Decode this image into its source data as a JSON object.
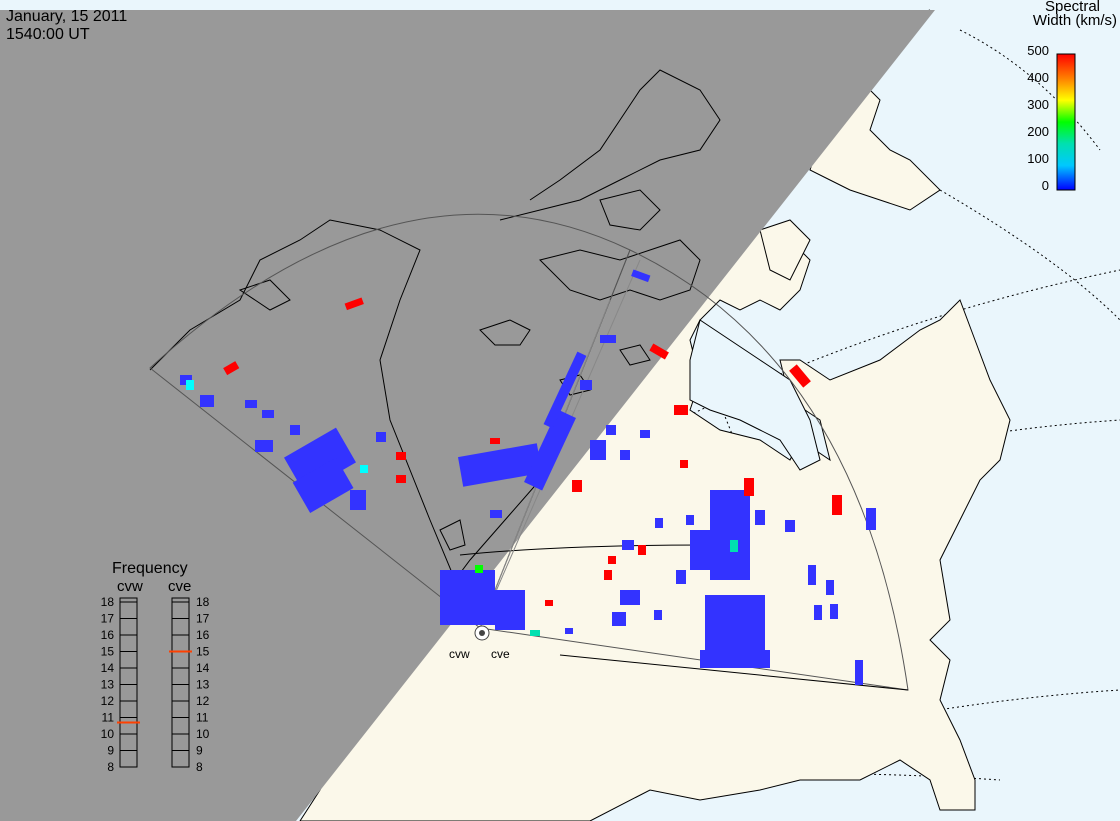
{
  "header": {
    "date": "January, 15 2011",
    "time": "1540:00 UT"
  },
  "colorbar": {
    "title_line1": "Spectral",
    "title_line2": "Width (km/s)",
    "ticks": [
      "500",
      "400",
      "300",
      "200",
      "100",
      "0"
    ],
    "colors": [
      "#0000ff",
      "#00c8ff",
      "#00e0b0",
      "#00ff00",
      "#ffff00",
      "#ff8000",
      "#ff0000"
    ]
  },
  "frequency_panel": {
    "title": "Frequency",
    "cvw_label": "cvw",
    "cve_label": "cve",
    "ticks": [
      "18",
      "17",
      "16",
      "15",
      "14",
      "13",
      "12",
      "11",
      "10",
      "9",
      "8"
    ],
    "cvw_value_mhz": 10.7,
    "cve_value_mhz": 15.0,
    "marker_color": "#ff4000"
  },
  "radars": {
    "cvw_label": "cvw",
    "cve_label": "cve"
  },
  "colors": {
    "night": "#999999",
    "land": "#fbf8ea",
    "ocean": "#eaf6fc",
    "backscatter": "#3333ff",
    "high_width": "#ff0000",
    "mid_width": "#00ffff"
  }
}
